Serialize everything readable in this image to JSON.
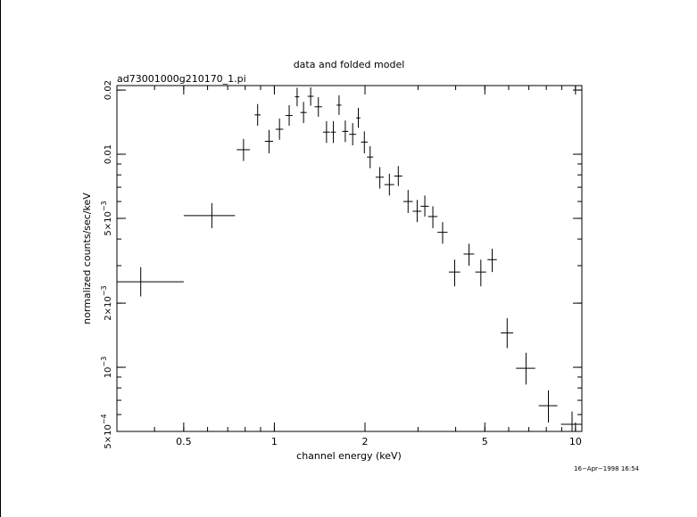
{
  "chart_data": {
    "type": "scatter",
    "title": "data and folded model",
    "subtitle": "ad73001000g210170_1.pi",
    "xlabel": "channel energy (keV)",
    "ylabel": "normalized counts/sec/keV",
    "xscale": "log",
    "yscale": "log",
    "xlim": [
      0.3,
      10.5
    ],
    "ylim": [
      0.0005,
      0.021
    ],
    "x_ticks": [
      {
        "v": 0.5,
        "t": "0.5"
      },
      {
        "v": 1,
        "t": "1"
      },
      {
        "v": 2,
        "t": "2"
      },
      {
        "v": 5,
        "t": "5"
      },
      {
        "v": 10,
        "t": "10"
      }
    ],
    "y_ticks": [
      {
        "v": 0.0005,
        "t": "5×10",
        "e": "−4"
      },
      {
        "v": 0.001,
        "t": "10",
        "e": "−3"
      },
      {
        "v": 0.002,
        "t": "2×10",
        "e": "−3"
      },
      {
        "v": 0.005,
        "t": "5×10",
        "e": "−3"
      },
      {
        "v": 0.01,
        "t": "0.01",
        "e": ""
      },
      {
        "v": 0.02,
        "t": "0.02",
        "e": ""
      }
    ],
    "grid": false,
    "points": [
      {
        "x": 0.36,
        "xlo": 0.3,
        "xhi": 0.5,
        "y": 0.00252,
        "ylo": 0.00215,
        "yhi": 0.00295
      },
      {
        "x": 0.62,
        "xlo": 0.5,
        "xhi": 0.74,
        "y": 0.00515,
        "ylo": 0.0045,
        "yhi": 0.0059
      },
      {
        "x": 0.79,
        "xlo": 0.75,
        "xhi": 0.83,
        "y": 0.0105,
        "ylo": 0.0093,
        "yhi": 0.0118
      },
      {
        "x": 0.88,
        "xlo": 0.86,
        "xhi": 0.9,
        "y": 0.0153,
        "ylo": 0.0136,
        "yhi": 0.0172
      },
      {
        "x": 0.96,
        "xlo": 0.93,
        "xhi": 0.99,
        "y": 0.0115,
        "ylo": 0.0101,
        "yhi": 0.013
      },
      {
        "x": 1.04,
        "xlo": 1.01,
        "xhi": 1.07,
        "y": 0.0131,
        "ylo": 0.0117,
        "yhi": 0.0147
      },
      {
        "x": 1.12,
        "xlo": 1.09,
        "xhi": 1.15,
        "y": 0.0152,
        "ylo": 0.0136,
        "yhi": 0.017
      },
      {
        "x": 1.19,
        "xlo": 1.17,
        "xhi": 1.21,
        "y": 0.0186,
        "ylo": 0.0168,
        "yhi": 0.0205
      },
      {
        "x": 1.25,
        "xlo": 1.22,
        "xhi": 1.28,
        "y": 0.0157,
        "ylo": 0.014,
        "yhi": 0.0176
      },
      {
        "x": 1.32,
        "xlo": 1.29,
        "xhi": 1.35,
        "y": 0.0187,
        "ylo": 0.0169,
        "yhi": 0.0206
      },
      {
        "x": 1.4,
        "xlo": 1.36,
        "xhi": 1.44,
        "y": 0.0167,
        "ylo": 0.015,
        "yhi": 0.0185
      },
      {
        "x": 1.49,
        "xlo": 1.45,
        "xhi": 1.53,
        "y": 0.0127,
        "ylo": 0.0113,
        "yhi": 0.0143
      },
      {
        "x": 1.57,
        "xlo": 1.54,
        "xhi": 1.6,
        "y": 0.0127,
        "ylo": 0.0113,
        "yhi": 0.0143
      },
      {
        "x": 1.64,
        "xlo": 1.61,
        "xhi": 1.67,
        "y": 0.017,
        "ylo": 0.0153,
        "yhi": 0.0189
      },
      {
        "x": 1.72,
        "xlo": 1.68,
        "xhi": 1.76,
        "y": 0.0128,
        "ylo": 0.0114,
        "yhi": 0.0144
      },
      {
        "x": 1.82,
        "xlo": 1.77,
        "xhi": 1.87,
        "y": 0.0124,
        "ylo": 0.011,
        "yhi": 0.014
      },
      {
        "x": 1.9,
        "xlo": 1.87,
        "xhi": 1.93,
        "y": 0.0148,
        "ylo": 0.0133,
        "yhi": 0.0165
      },
      {
        "x": 1.99,
        "xlo": 1.94,
        "xhi": 2.04,
        "y": 0.0114,
        "ylo": 0.0101,
        "yhi": 0.0128
      },
      {
        "x": 2.08,
        "xlo": 2.03,
        "xhi": 2.13,
        "y": 0.0097,
        "ylo": 0.0086,
        "yhi": 0.0109
      },
      {
        "x": 2.24,
        "xlo": 2.17,
        "xhi": 2.31,
        "y": 0.0078,
        "ylo": 0.0069,
        "yhi": 0.0087
      },
      {
        "x": 2.41,
        "xlo": 2.32,
        "xhi": 2.5,
        "y": 0.0072,
        "ylo": 0.0064,
        "yhi": 0.0081
      },
      {
        "x": 2.58,
        "xlo": 2.5,
        "xhi": 2.66,
        "y": 0.0079,
        "ylo": 0.0071,
        "yhi": 0.0088
      },
      {
        "x": 2.78,
        "xlo": 2.68,
        "xhi": 2.88,
        "y": 0.006,
        "ylo": 0.0053,
        "yhi": 0.0068
      },
      {
        "x": 2.98,
        "xlo": 2.88,
        "xhi": 3.08,
        "y": 0.0054,
        "ylo": 0.0048,
        "yhi": 0.0061
      },
      {
        "x": 3.16,
        "xlo": 3.06,
        "xhi": 3.26,
        "y": 0.0057,
        "ylo": 0.0051,
        "yhi": 0.0064
      },
      {
        "x": 3.36,
        "xlo": 3.24,
        "xhi": 3.48,
        "y": 0.0051,
        "ylo": 0.0045,
        "yhi": 0.0057
      },
      {
        "x": 3.62,
        "xlo": 3.48,
        "xhi": 3.76,
        "y": 0.0043,
        "ylo": 0.0038,
        "yhi": 0.0048
      },
      {
        "x": 3.97,
        "xlo": 3.8,
        "xhi": 4.14,
        "y": 0.0028,
        "ylo": 0.0024,
        "yhi": 0.0032
      },
      {
        "x": 4.43,
        "xlo": 4.25,
        "xhi": 4.61,
        "y": 0.0034,
        "ylo": 0.003,
        "yhi": 0.0038
      },
      {
        "x": 4.85,
        "xlo": 4.65,
        "xhi": 5.05,
        "y": 0.0028,
        "ylo": 0.0024,
        "yhi": 0.0032
      },
      {
        "x": 5.29,
        "xlo": 5.1,
        "xhi": 5.48,
        "y": 0.0032,
        "ylo": 0.0028,
        "yhi": 0.0036
      },
      {
        "x": 5.93,
        "xlo": 5.65,
        "xhi": 6.21,
        "y": 0.00145,
        "ylo": 0.00123,
        "yhi": 0.0017
      },
      {
        "x": 6.85,
        "xlo": 6.35,
        "xhi": 7.35,
        "y": 0.00099,
        "ylo": 0.00083,
        "yhi": 0.00117
      },
      {
        "x": 8.13,
        "xlo": 7.55,
        "xhi": 8.71,
        "y": 0.00066,
        "ylo": 0.00055,
        "yhi": 0.00078
      },
      {
        "x": 9.74,
        "xlo": 8.95,
        "xhi": 10.53,
        "y": 0.00054,
        "ylo": 0.00046,
        "yhi": 0.00062
      }
    ]
  },
  "footer": {
    "timestamp": "16−Apr−1998 16:54"
  }
}
